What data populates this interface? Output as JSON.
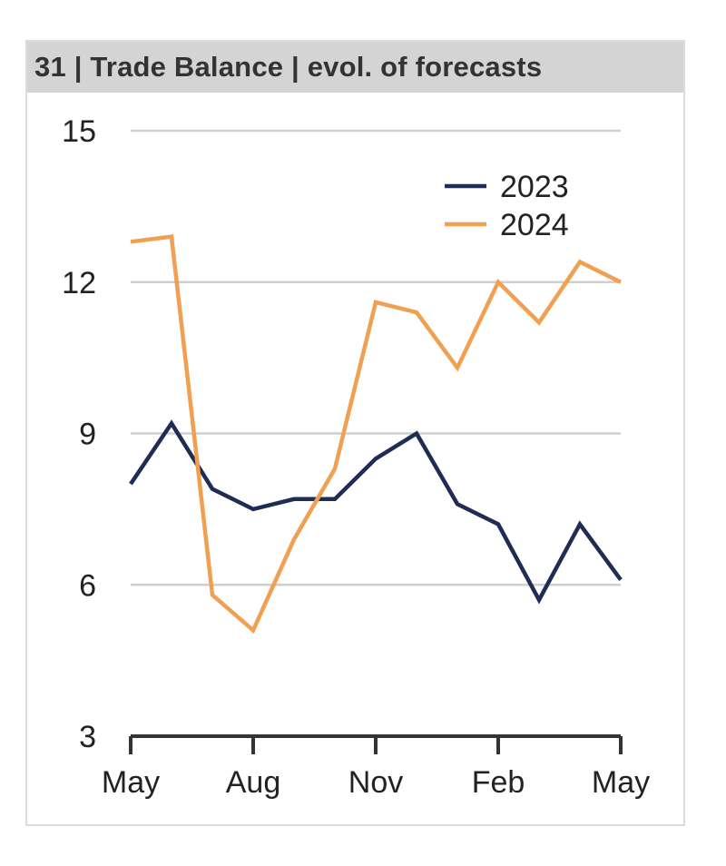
{
  "chart_data": {
    "type": "line",
    "title": "31 | Trade Balance | evol. of forecasts",
    "xlabel": "",
    "ylabel": "",
    "x_tick_labels": [
      "May",
      "Aug",
      "Nov",
      "Feb",
      "May"
    ],
    "y_ticks": [
      3,
      6,
      9,
      12,
      15
    ],
    "ylim": [
      3,
      15
    ],
    "grid": true,
    "legend_position": "top-right",
    "x": [
      "May",
      "Jun",
      "Jul",
      "Aug",
      "Sep",
      "Oct",
      "Nov",
      "Dec",
      "Jan",
      "Feb",
      "Mar",
      "Apr",
      "May"
    ],
    "series": [
      {
        "name": "2023",
        "color": "#1f2d55",
        "values": [
          8.0,
          9.2,
          7.9,
          7.5,
          7.7,
          7.7,
          8.5,
          9.0,
          7.6,
          7.2,
          5.7,
          7.2,
          6.1
        ]
      },
      {
        "name": "2024",
        "color": "#f0a050",
        "values": [
          12.8,
          12.9,
          5.8,
          5.1,
          6.9,
          8.3,
          11.6,
          11.4,
          10.3,
          12.0,
          11.2,
          12.4,
          12.0
        ]
      }
    ]
  }
}
